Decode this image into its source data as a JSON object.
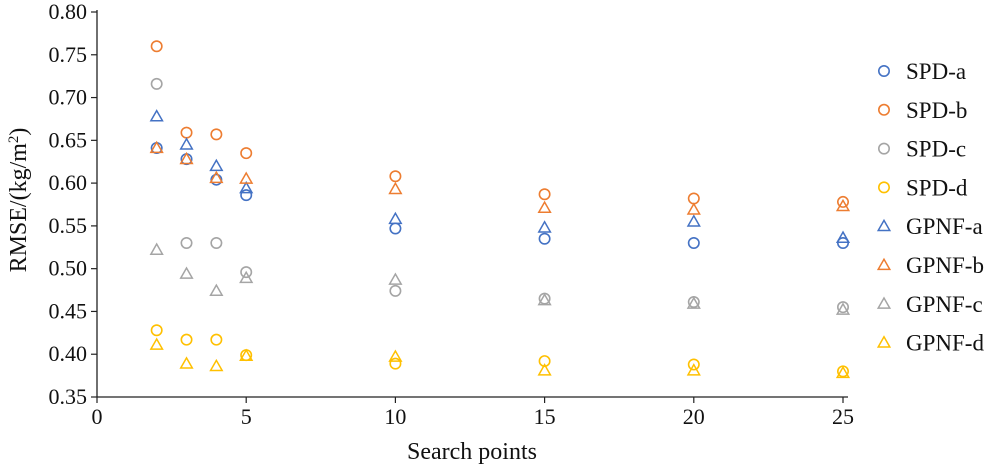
{
  "chart_data": {
    "type": "scatter",
    "title": "",
    "xlabel": "Search points",
    "ylabel_main": "RMSE/(kg/m",
    "ylabel_sup": "2",
    "ylabel_close": ")",
    "xlim": [
      0,
      25
    ],
    "ylim": [
      0.35,
      0.8
    ],
    "x_ticks": [
      "0",
      "5",
      "10",
      "15",
      "20",
      "25"
    ],
    "y_ticks": [
      "0.35",
      "0.40",
      "0.45",
      "0.50",
      "0.55",
      "0.60",
      "0.65",
      "0.70",
      "0.75",
      "0.80"
    ],
    "grid": false,
    "legend_position": "right",
    "x": [
      2,
      3,
      4,
      5,
      10,
      15,
      20,
      25
    ],
    "series": [
      {
        "name": "SPD-a",
        "marker": "circle",
        "color": "#4472C4",
        "values": [
          0.641,
          0.628,
          0.604,
          0.586,
          0.547,
          0.535,
          0.53,
          0.53
        ]
      },
      {
        "name": "SPD-b",
        "marker": "circle",
        "color": "#ED7D31",
        "values": [
          0.76,
          0.659,
          0.657,
          0.635,
          0.608,
          0.587,
          0.582,
          0.578
        ]
      },
      {
        "name": "SPD-c",
        "marker": "circle",
        "color": "#A5A5A5",
        "values": [
          0.716,
          0.53,
          0.53,
          0.496,
          0.474,
          0.465,
          0.461,
          0.455
        ]
      },
      {
        "name": "SPD-d",
        "marker": "circle",
        "color": "#FFC000",
        "values": [
          0.428,
          0.417,
          0.417,
          0.399,
          0.389,
          0.392,
          0.388,
          0.38
        ]
      },
      {
        "name": "GPNF-a",
        "marker": "triangle",
        "color": "#4472C4",
        "values": [
          0.678,
          0.645,
          0.62,
          0.594,
          0.558,
          0.548,
          0.555,
          0.536
        ]
      },
      {
        "name": "GPNF-b",
        "marker": "triangle",
        "color": "#ED7D31",
        "values": [
          0.641,
          0.628,
          0.606,
          0.605,
          0.593,
          0.571,
          0.569,
          0.573
        ]
      },
      {
        "name": "GPNF-c",
        "marker": "triangle",
        "color": "#A5A5A5",
        "values": [
          0.522,
          0.494,
          0.474,
          0.489,
          0.487,
          0.463,
          0.459,
          0.452
        ]
      },
      {
        "name": "GPNF-d",
        "marker": "triangle",
        "color": "#FFC000",
        "values": [
          0.411,
          0.389,
          0.386,
          0.398,
          0.397,
          0.381,
          0.381,
          0.378
        ]
      }
    ]
  }
}
